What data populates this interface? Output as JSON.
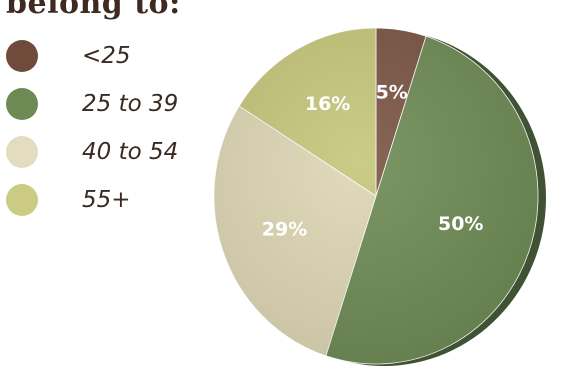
{
  "title": "belong to:",
  "colors": {
    "lt25": "#7a5544",
    "25to39": "#6d8a54",
    "40to54": "#ddd6b4",
    "55plus": "#c4c67a",
    "label_text": "#ffffff"
  },
  "chart_data": {
    "type": "pie",
    "title": "",
    "legend_position": "left",
    "slices": [
      {
        "label": "<25",
        "value": 5,
        "value_label": "5%",
        "color": "#7a5544"
      },
      {
        "label": "25 to 39",
        "value": 50,
        "value_label": "50%",
        "color": "#6d8a54"
      },
      {
        "label": "40 to 54",
        "value": 29,
        "value_label": "29%",
        "color": "#ddd6b4"
      },
      {
        "label": "55+",
        "value": 16,
        "value_label": "16%",
        "color": "#c4c67a"
      }
    ]
  }
}
